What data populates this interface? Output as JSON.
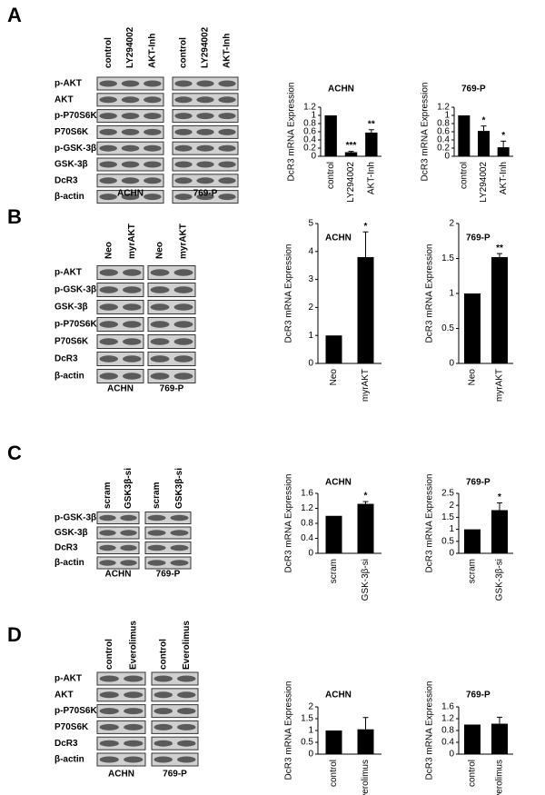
{
  "panels": [
    {
      "label": "A",
      "lanes": [
        "control",
        "LY294002",
        "AKT-Inh"
      ],
      "cell_lines": [
        "ACHN",
        "769-P"
      ],
      "rows": [
        "p-AKT",
        "AKT",
        "p-P70S6K",
        "P70S6K",
        "p-GSK-3β",
        "GSK-3β",
        "DcR3",
        "β-actin"
      ]
    },
    {
      "label": "B",
      "lanes": [
        "Neo",
        "myrAKT"
      ],
      "cell_lines": [
        "ACHN",
        "769-P"
      ],
      "rows": [
        "p-AKT",
        "p-GSK-3β",
        "GSK-3β",
        "p-P70S6K",
        "P70S6K",
        "DcR3",
        "β-actin"
      ]
    },
    {
      "label": "C",
      "lanes": [
        "scram",
        "GSK3β-si"
      ],
      "cell_lines": [
        "ACHN",
        "769-P"
      ],
      "rows": [
        "p-GSK-3β",
        "GSK-3β",
        "DcR3",
        "β-actin"
      ]
    },
    {
      "label": "D",
      "lanes": [
        "control",
        "Everolimus"
      ],
      "cell_lines": [
        "ACHN",
        "769-P"
      ],
      "rows": [
        "p-AKT",
        "AKT",
        "p-P70S6K",
        "P70S6K",
        "DcR3",
        "β-actin"
      ]
    }
  ],
  "chart_data": [
    {
      "type": "bar",
      "title": "ACHN",
      "y_label": "DcR3 mRNA Expression",
      "categories": [
        "control",
        "LY294002",
        "AKT-Inh"
      ],
      "values": [
        1,
        0.1,
        0.58
      ],
      "errors": [
        null,
        0.02,
        0.07
      ],
      "annotations": [
        null,
        "***",
        "**"
      ],
      "color": "#000000",
      "ylim": [
        0,
        1.2
      ],
      "yticks": [
        0,
        0.2,
        0.4,
        0.6,
        0.8,
        1,
        1.2
      ]
    },
    {
      "type": "bar",
      "title": "769-P",
      "y_label": "DcR3 mRNA Expression",
      "categories": [
        "control",
        "LY294002",
        "AKT-Inh"
      ],
      "values": [
        1,
        0.62,
        0.22
      ],
      "errors": [
        null,
        0.12,
        0.15
      ],
      "annotations": [
        null,
        "*",
        "*"
      ],
      "color": "#000000",
      "ylim": [
        0,
        1.2
      ],
      "yticks": [
        0,
        0.2,
        0.4,
        0.6,
        0.8,
        1,
        1.2
      ]
    },
    {
      "type": "bar",
      "title": "ACHN",
      "y_label": "DcR3 mRNA Expression",
      "categories": [
        "Neo",
        "myrAKT"
      ],
      "values": [
        1,
        3.8
      ],
      "errors": [
        null,
        0.9
      ],
      "annotations": [
        null,
        "*"
      ],
      "color": "#000000",
      "ylim": [
        0,
        5
      ],
      "yticks": [
        0,
        1,
        2,
        3,
        4,
        5
      ]
    },
    {
      "type": "bar",
      "title": "769-P",
      "y_label": "DcR3 mRNA Expression",
      "categories": [
        "Neo",
        "myrAKT"
      ],
      "values": [
        1,
        1.52
      ],
      "errors": [
        null,
        0.05
      ],
      "annotations": [
        null,
        "**"
      ],
      "color": "#000000",
      "ylim": [
        0,
        2
      ],
      "yticks": [
        0,
        0.5,
        1,
        1.5,
        2
      ]
    },
    {
      "type": "bar",
      "title": "ACHN",
      "y_label": "DcR3 mRNA Expression",
      "categories": [
        "scram",
        "GSK-3β-si"
      ],
      "values": [
        1,
        1.32
      ],
      "errors": [
        null,
        0.06
      ],
      "annotations": [
        null,
        "*"
      ],
      "color": "#000000",
      "ylim": [
        0,
        1.6
      ],
      "yticks": [
        0,
        0.4,
        0.8,
        1.2,
        1.6
      ]
    },
    {
      "type": "bar",
      "title": "769-P",
      "y_label": "DcR3 mRNA Expression",
      "categories": [
        "scram",
        "GSK-3β-si"
      ],
      "values": [
        1,
        1.8
      ],
      "errors": [
        null,
        0.3
      ],
      "annotations": [
        null,
        "*"
      ],
      "color": "#000000",
      "ylim": [
        0,
        2.5
      ],
      "yticks": [
        0,
        0.5,
        1,
        1.5,
        2,
        2.5
      ]
    },
    {
      "type": "bar",
      "title": "ACHN",
      "y_label": "DcR3 mRNA Expression",
      "categories": [
        "control",
        "Everolimus"
      ],
      "values": [
        1,
        1.05
      ],
      "errors": [
        null,
        0.5
      ],
      "color": "#000000",
      "ylim": [
        0,
        2
      ],
      "yticks": [
        0,
        0.5,
        1,
        1.5,
        2
      ]
    },
    {
      "type": "bar",
      "title": "769-P",
      "y_label": "DcR3 mRNA Expression",
      "categories": [
        "control",
        "Everolimus"
      ],
      "values": [
        1,
        1.03
      ],
      "errors": [
        null,
        0.22
      ],
      "color": "#000000",
      "ylim": [
        0,
        1.6
      ],
      "yticks": [
        0,
        0.4,
        0.8,
        1.2,
        1.6
      ]
    }
  ]
}
